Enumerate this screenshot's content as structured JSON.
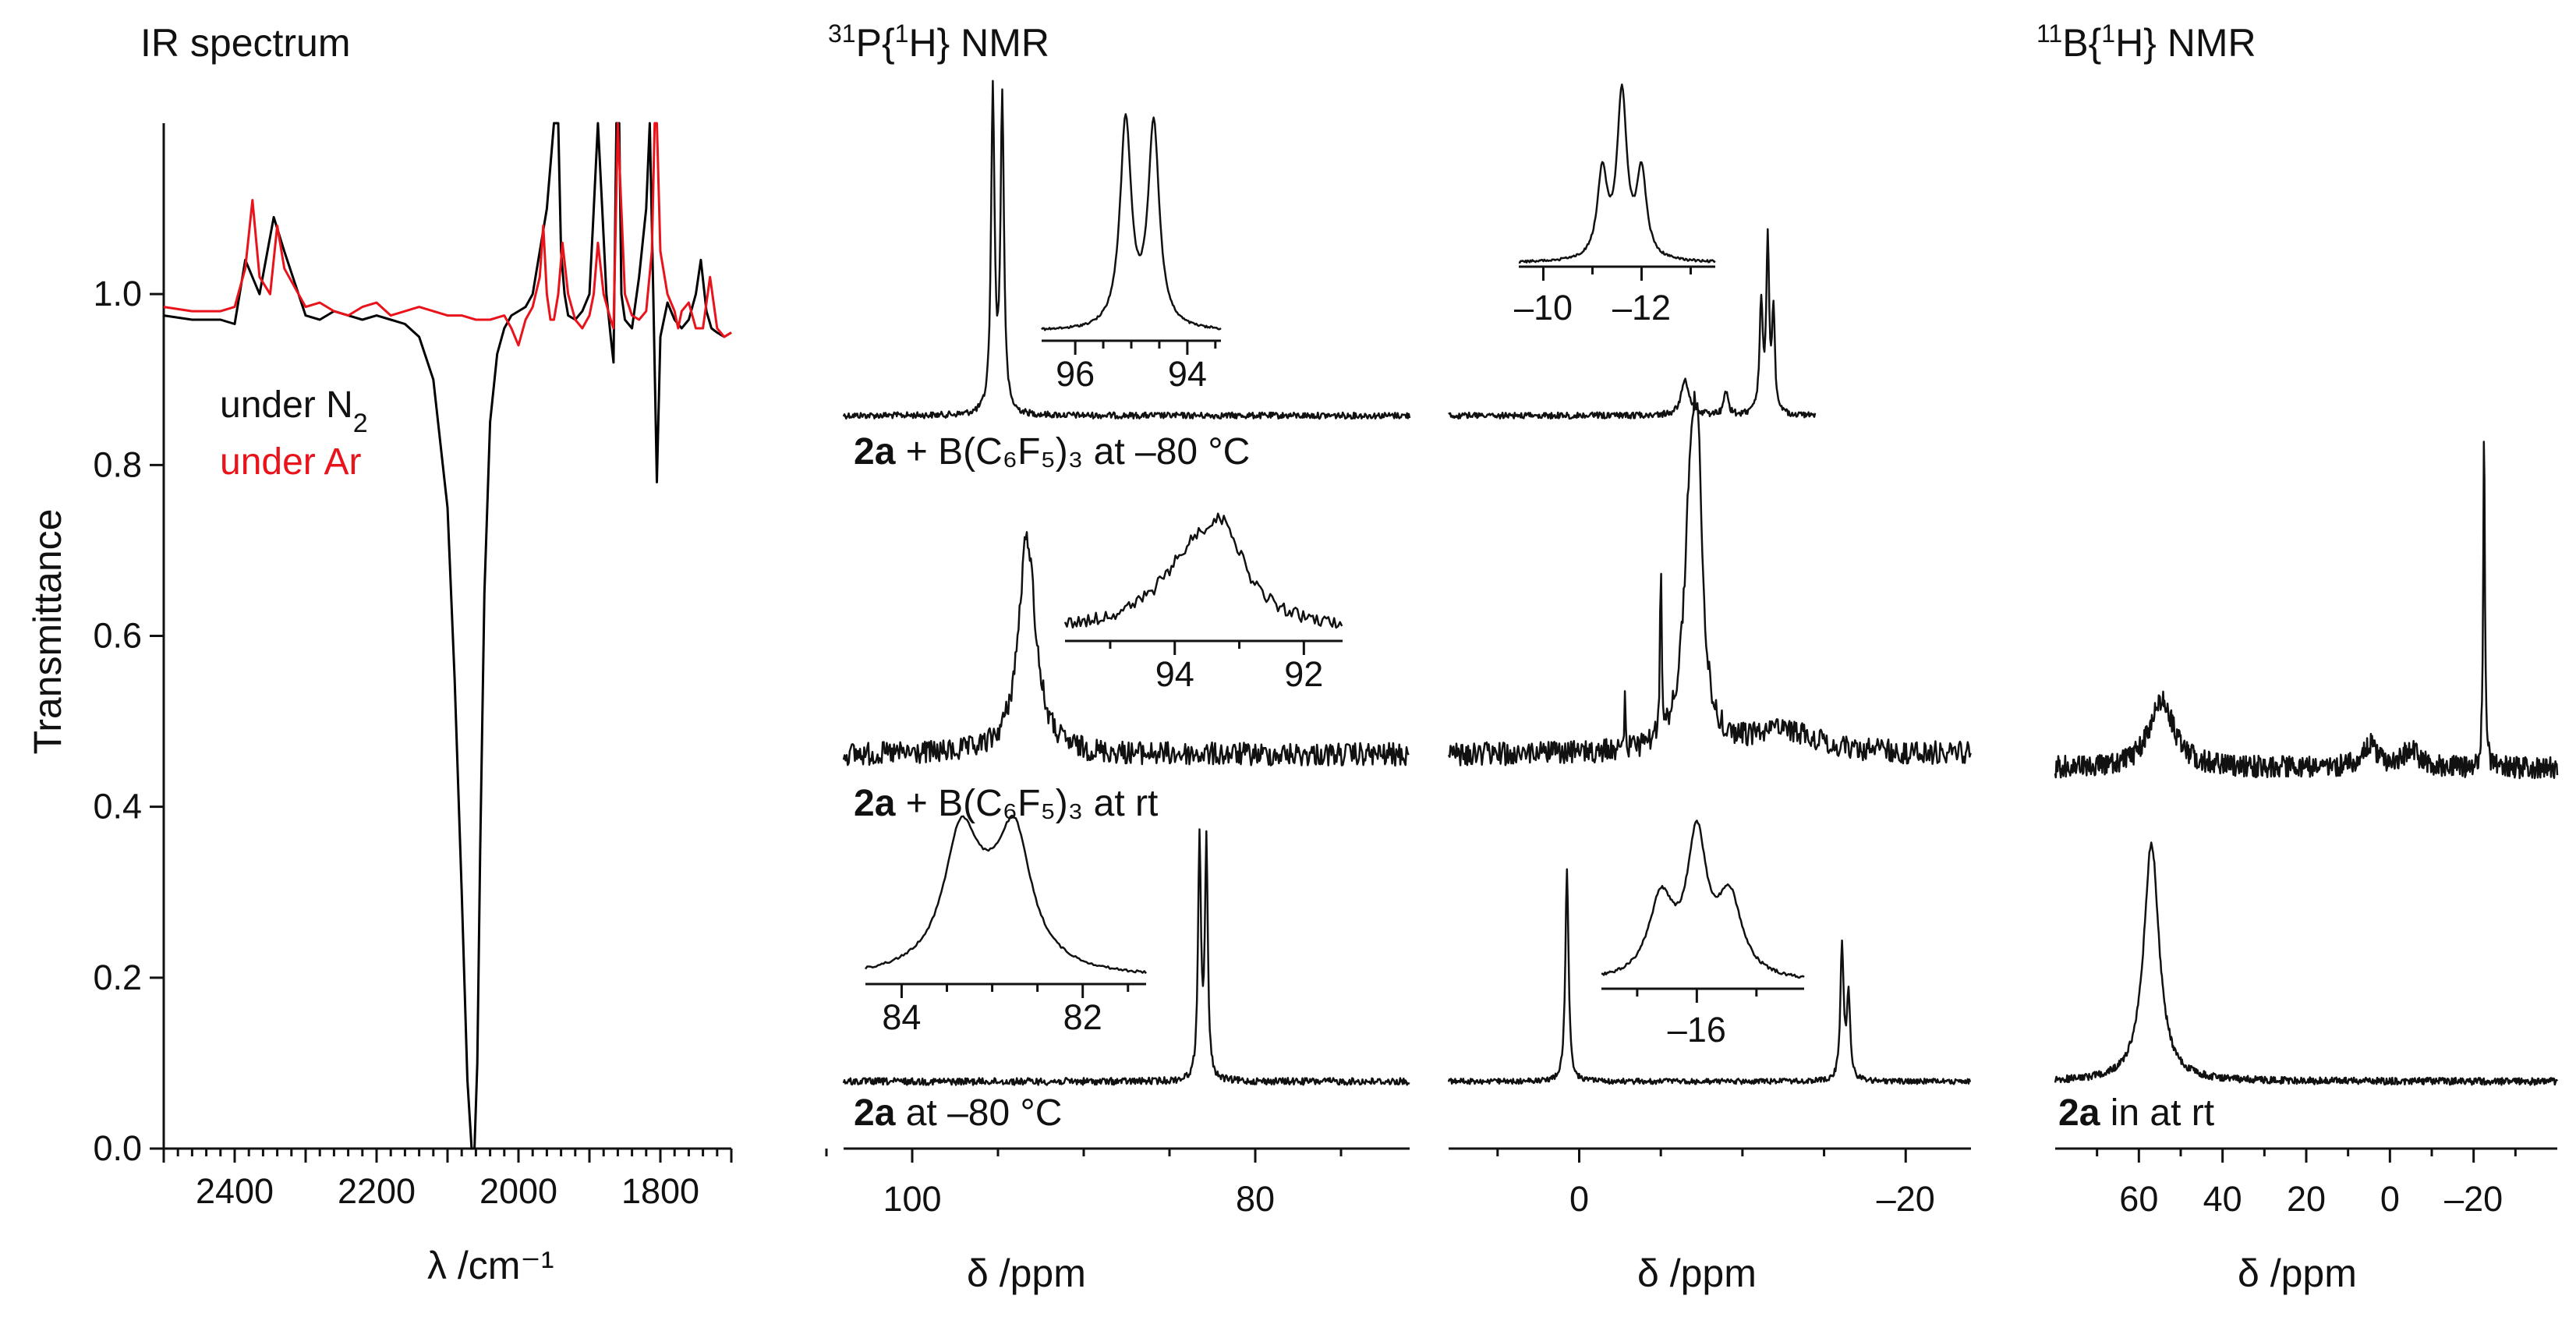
{
  "chart_data": [
    {
      "type": "line",
      "panel": "ir",
      "title": "IR spectrum",
      "xlabel": "λ  /cm⁻¹",
      "ylabel": "Transmittance",
      "xlim": [
        2500,
        1700
      ],
      "ylim": [
        0.0,
        1.2
      ],
      "xticks": [
        "2400",
        "2200",
        "2000",
        "1800"
      ],
      "yticks": [
        "0.0",
        "0.2",
        "0.4",
        "0.6",
        "0.8",
        "1.0"
      ],
      "legend": [
        "under N₂",
        "under Ar"
      ],
      "series": [
        {
          "name": "under N₂",
          "color": "#000000",
          "x": [
            2500,
            2460,
            2420,
            2400,
            2385,
            2365,
            2345,
            2330,
            2310,
            2300,
            2280,
            2260,
            2240,
            2220,
            2200,
            2180,
            2160,
            2140,
            2120,
            2100,
            2090,
            2080,
            2072,
            2066,
            2062,
            2058,
            2054,
            2048,
            2040,
            2030,
            2020,
            2010,
            2000,
            1990,
            1980,
            1970,
            1960,
            1950,
            1948,
            1944,
            1940,
            1935,
            1930,
            1920,
            1910,
            1900,
            1895,
            1888,
            1882,
            1876,
            1870,
            1866,
            1862,
            1858,
            1855,
            1850,
            1840,
            1830,
            1820,
            1815,
            1810,
            1805,
            1800,
            1790,
            1780,
            1770,
            1760,
            1750,
            1743,
            1735,
            1728,
            1720,
            1710,
            1700
          ],
          "y": [
            0.975,
            0.97,
            0.97,
            0.965,
            1.04,
            1.0,
            1.09,
            1.05,
            1.0,
            0.975,
            0.97,
            0.98,
            0.975,
            0.97,
            0.975,
            0.97,
            0.965,
            0.95,
            0.9,
            0.75,
            0.55,
            0.3,
            0.08,
            0.0,
            0.0,
            0.1,
            0.35,
            0.65,
            0.85,
            0.93,
            0.96,
            0.975,
            0.98,
            0.985,
            1.0,
            1.05,
            1.1,
            1.2,
            1.2,
            1.2,
            1.05,
            1.0,
            0.975,
            0.97,
            0.98,
            1.0,
            1.08,
            1.2,
            1.1,
            1.0,
            0.95,
            0.92,
            1.2,
            1.2,
            1.0,
            0.97,
            0.96,
            1.02,
            1.1,
            1.2,
            1.0,
            0.78,
            0.95,
            0.99,
            0.97,
            0.96,
            0.97,
            1.0,
            1.04,
            0.98,
            0.96,
            0.955,
            0.95,
            0.955
          ]
        },
        {
          "name": "under Ar",
          "color": "#e8131b",
          "x": [
            2500,
            2460,
            2420,
            2400,
            2385,
            2375,
            2365,
            2350,
            2340,
            2330,
            2310,
            2300,
            2280,
            2260,
            2240,
            2220,
            2200,
            2180,
            2160,
            2140,
            2120,
            2100,
            2080,
            2060,
            2040,
            2020,
            2010,
            2000,
            1990,
            1980,
            1970,
            1965,
            1960,
            1955,
            1950,
            1944,
            1938,
            1930,
            1920,
            1910,
            1900,
            1894,
            1888,
            1880,
            1870,
            1866,
            1860,
            1850,
            1840,
            1830,
            1820,
            1812,
            1808,
            1805,
            1800,
            1790,
            1780,
            1775,
            1770,
            1760,
            1750,
            1740,
            1730,
            1720,
            1710,
            1700
          ],
          "y": [
            0.985,
            0.98,
            0.98,
            0.985,
            1.03,
            1.11,
            1.02,
            1.0,
            1.08,
            1.03,
            1.0,
            0.985,
            0.99,
            0.98,
            0.975,
            0.985,
            0.99,
            0.975,
            0.98,
            0.985,
            0.98,
            0.975,
            0.975,
            0.97,
            0.97,
            0.975,
            0.96,
            0.94,
            0.97,
            0.985,
            1.02,
            1.08,
            1.0,
            0.97,
            0.97,
            1.0,
            1.06,
            1.0,
            0.97,
            0.96,
            0.975,
            1.0,
            1.06,
            1.0,
            0.97,
            0.96,
            1.2,
            1.0,
            0.975,
            0.97,
            0.98,
            1.05,
            1.2,
            1.2,
            1.05,
            1.0,
            0.98,
            0.96,
            0.98,
            0.99,
            0.96,
            0.96,
            1.02,
            0.96,
            0.95,
            0.955
          ]
        }
      ]
    },
    {
      "type": "line",
      "panel": "31P",
      "title": "31P{1H} NMR",
      "title_parts": {
        "sup1": "31",
        "text1": "P{",
        "sup2": "1",
        "text2": "H} NMR"
      },
      "xlabel": "δ  /ppm",
      "xlim": [
        104,
        71
      ],
      "xticks": [
        "100",
        "80"
      ],
      "traces": [
        {
          "label_bold": "2a",
          "label_text": " + B(C₆F₅)₃ at –80 °C",
          "condition": "at –80 °C",
          "peaks_ppm": [
            95.3,
            94.7
          ],
          "inset": {
            "xlim": [
              96.6,
              93.4
            ],
            "xticks": [
              "96",
              "94"
            ],
            "peaks_ppm": [
              95.1,
              94.6
            ]
          }
        },
        {
          "label_bold": "2a",
          "label_text": " + B(C₆F₅)₃ at rt",
          "condition": "at rt",
          "peaks_ppm": [
            93.3
          ],
          "inset": {
            "xlim": [
              95.7,
              91.4
            ],
            "xticks": [
              "94",
              "92"
            ],
            "peaks_ppm": [
              93.5
            ]
          }
        },
        {
          "label_bold": "2a",
          "label_text": " at –80 °C",
          "condition": "at –80 °C",
          "peaks_ppm": [
            83.2,
            82.9
          ],
          "inset": {
            "xlim": [
              84.4,
              81.3
            ],
            "xticks": [
              "84",
              "82"
            ],
            "peaks_ppm": [
              83.3,
              82.8
            ]
          }
        }
      ]
    },
    {
      "type": "line",
      "panel": "31P-high-field",
      "xlabel": "δ  /ppm",
      "xlim": [
        8,
        -24
      ],
      "xticks": [
        "0",
        "–20"
      ],
      "traces": [
        {
          "condition": "at –80 °C",
          "peaks_ppm": [
            -6.5,
            -9.0,
            -11.1,
            -11.5,
            -11.9
          ],
          "inset": {
            "xlim": [
              -9.5,
              -13.5
            ],
            "xticks": [
              "–10",
              "–12"
            ],
            "peaks_ppm": [
              -11.2,
              -11.6,
              -12.0
            ]
          }
        },
        {
          "condition": "at rt",
          "peaks_ppm": [
            -2.8,
            -5.0,
            -6.8,
            -7.2
          ],
          "inset": null
        },
        {
          "condition": "at –80 °C",
          "peaks_ppm": [
            0.8,
            -16.1,
            -16.5
          ],
          "inset": {
            "xlim": [
              -14.4,
              -17.8
            ],
            "xticks": [
              "–16"
            ],
            "peaks_ppm": [
              -15.4,
              -16.0,
              -16.5
            ]
          }
        }
      ]
    },
    {
      "type": "line",
      "panel": "11B",
      "title": "11B{1H} NMR",
      "title_parts": {
        "sup1": "11",
        "text1": "B{",
        "sup2": "1",
        "text2": "H} NMR"
      },
      "xlabel": "δ  /ppm",
      "xlim": [
        80,
        -40
      ],
      "xticks": [
        "60",
        "40",
        "20",
        "0",
        "–20"
      ],
      "traces": [
        {
          "label_bold": "2a",
          "label_text": " + B(C₆F₅)₃ at rt",
          "peaks_ppm": [
            54.5,
            -22.5
          ]
        },
        {
          "label_bold": "2a",
          "label_text": " in at rt",
          "peaks_ppm": [
            57.0
          ]
        }
      ]
    }
  ]
}
